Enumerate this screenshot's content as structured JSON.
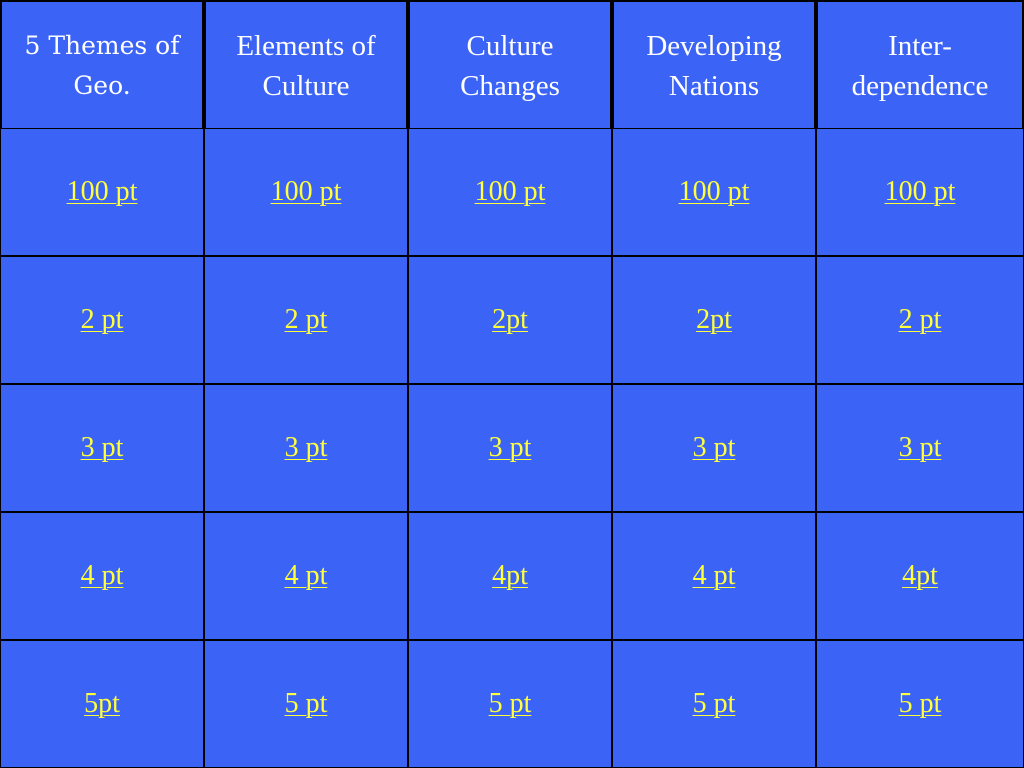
{
  "categories": [
    "5 Themes of Geo.",
    "Elements of Culture",
    "Culture Changes",
    "Developing Nations",
    "Inter-dependence"
  ],
  "rows": [
    [
      "100 pt",
      "100 pt",
      "100 pt",
      "100 pt",
      "100 pt"
    ],
    [
      "2 pt",
      "2 pt",
      "2pt",
      "2pt",
      "2 pt"
    ],
    [
      "3 pt",
      "3 pt",
      "3 pt",
      "3 pt",
      "3 pt"
    ],
    [
      "4 pt",
      "4 pt",
      "4pt",
      "4 pt",
      "4pt"
    ],
    [
      "5pt",
      "5 pt",
      "5 pt",
      "5 pt",
      "5 pt"
    ]
  ],
  "colors": {
    "cell_background": "#3b63f5",
    "border": "#000000",
    "header_text": "#ffffff",
    "link_text": "#ffff3c"
  }
}
